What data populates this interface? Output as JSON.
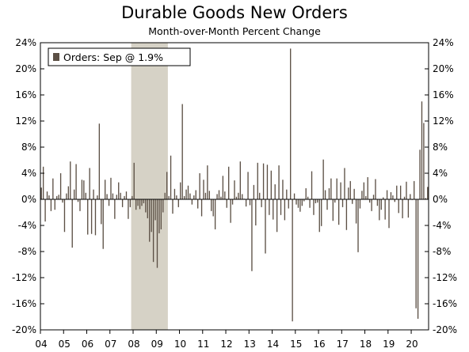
{
  "chart_data": {
    "type": "bar",
    "title": "Durable Goods New Orders",
    "subtitle": "Month-over-Month Percent Change",
    "xlabel": "",
    "ylabel": "",
    "ylim": [
      -20,
      24
    ],
    "yticks": [
      -20,
      -16,
      -12,
      -8,
      -4,
      0,
      4,
      8,
      12,
      16,
      20,
      24
    ],
    "ytick_labels": [
      "-20%",
      "-16%",
      "-12%",
      "-8%",
      "-4%",
      "0%",
      "4%",
      "8%",
      "12%",
      "16%",
      "20%",
      "24%"
    ],
    "xtick_labels": [
      "04",
      "05",
      "06",
      "07",
      "08",
      "09",
      "10",
      "11",
      "12",
      "13",
      "14",
      "15",
      "16",
      "17",
      "18",
      "19",
      "20"
    ],
    "x_start": "2004-01",
    "x_end": "2020-09",
    "legend": {
      "label": "Orders: Sep @ 1.9%",
      "placement": "top-left"
    },
    "recession_shading": [
      "2007-12",
      "2009-06"
    ],
    "bar_color": "#5c5045",
    "recession_color": "#d6d2c6",
    "grid": false,
    "series": [
      {
        "name": "Orders: Sep @ 1.9%",
        "values": [
          1.8,
          5.0,
          -3.4,
          1.2,
          0.6,
          -1.8,
          3.2,
          -1.6,
          0.5,
          0.7,
          4.0,
          -0.5,
          -5.0,
          0.9,
          2.0,
          5.8,
          -7.4,
          1.5,
          5.4,
          -0.4,
          -1.8,
          3.0,
          2.9,
          1.0,
          -5.4,
          4.8,
          -5.3,
          1.5,
          -5.5,
          0.6,
          11.6,
          -3.8,
          -7.6,
          3.0,
          0.8,
          -1.0,
          3.3,
          0.9,
          -3.0,
          0.7,
          2.6,
          1.0,
          -1.2,
          0.5,
          1.2,
          -3.0,
          -1.2,
          0.5,
          5.6,
          -1.6,
          -1.0,
          -1.5,
          -1.0,
          -0.6,
          -2.0,
          -2.9,
          -6.5,
          -5.0,
          -9.6,
          -3.2,
          -10.5,
          -5.2,
          -4.6,
          -2.0,
          1.0,
          4.2,
          0.5,
          6.7,
          -2.2,
          1.6,
          0.6,
          -1.2,
          2.6,
          14.6,
          0.5,
          1.5,
          2.1,
          0.9,
          -0.8,
          0.6,
          1.4,
          -1.4,
          4.0,
          -2.6,
          3.0,
          1.0,
          5.2,
          1.3,
          -1.8,
          -2.6,
          -4.6,
          0.8,
          1.4,
          0.4,
          3.6,
          1.2,
          -1.3,
          5.0,
          -3.6,
          -0.8,
          2.9,
          0.4,
          1.0,
          5.8,
          0.8,
          0.1,
          -1.1,
          4.2,
          -0.9,
          -11.0,
          2.2,
          -4.0,
          5.6,
          1.0,
          -1.2,
          5.5,
          -8.3,
          5.3,
          -2.4,
          4.4,
          -3.1,
          2.3,
          -5.0,
          5.2,
          -2.4,
          3.0,
          -3.2,
          1.5,
          -1.4,
          23.1,
          -18.7,
          0.9,
          -0.8,
          -1.3,
          -1.9,
          -1.0,
          -0.3,
          1.7,
          0.4,
          -1.3,
          4.3,
          -2.4,
          -0.6,
          -0.5,
          -5.0,
          -4.1,
          6.1,
          1.4,
          -1.6,
          1.7,
          3.2,
          -3.3,
          -0.5,
          3.2,
          -3.9,
          2.6,
          -1.2,
          4.8,
          -4.7,
          1.8,
          2.8,
          -0.7,
          1.6,
          -3.7,
          -8.1,
          -1.4,
          1.3,
          2.6,
          0.5,
          3.4,
          -0.5,
          -1.8,
          0.7,
          3.1,
          -1.0,
          -3.2,
          -1.6,
          0.3,
          -3.1,
          1.4,
          -4.4,
          1.1,
          0.6,
          -0.4,
          2.1,
          -2.1,
          2.1,
          -2.9,
          0.4,
          2.7,
          -2.8,
          0.8,
          -0.1,
          2.8,
          -16.7,
          -18.3,
          7.6,
          15.0,
          11.7,
          0.2,
          1.9
        ]
      }
    ]
  }
}
